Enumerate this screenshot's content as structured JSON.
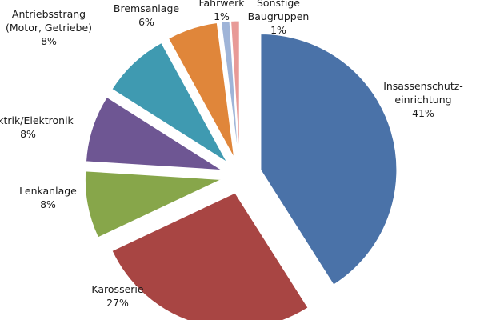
{
  "chart_data": {
    "type": "pie",
    "title": "",
    "legend": "none",
    "slices": [
      {
        "label_lines": [
          "Insassenschutz-",
          "einrichtung"
        ],
        "name": "Insassenschutz-einrichtung",
        "value": 41,
        "value_label": "41%",
        "color": "#4a72a8"
      },
      {
        "label_lines": [
          "Karosserie"
        ],
        "name": "Karosserie",
        "value": 27,
        "value_label": "27%",
        "color": "#a84543"
      },
      {
        "label_lines": [
          "Lenkanlage"
        ],
        "name": "Lenkanlage",
        "value": 8,
        "value_label": "8%",
        "color": "#87a64a"
      },
      {
        "label_lines": [
          "Elektrik/Elektronik"
        ],
        "name": "Elektrik/Elektronik",
        "value": 8,
        "value_label": "8%",
        "color": "#6e5693"
      },
      {
        "label_lines": [
          "Antriebsstrang",
          "(Motor, Getriebe)"
        ],
        "name": "Antriebsstrang (Motor, Getriebe)",
        "value": 8,
        "value_label": "8%",
        "color": "#3f9ab1"
      },
      {
        "label_lines": [
          "Bremsanlage"
        ],
        "name": "Bremsanlage",
        "value": 6,
        "value_label": "6%",
        "color": "#e0863a"
      },
      {
        "label_lines": [
          "Fahrwerk"
        ],
        "name": "Fahrwerk",
        "value": 1,
        "value_label": "1%",
        "color": "#9fb4d8"
      },
      {
        "label_lines": [
          "Sonstige",
          "Baugruppen"
        ],
        "name": "Sonstige Baugruppen",
        "value": 1,
        "value_label": "1%",
        "color": "#e89a97"
      }
    ]
  }
}
